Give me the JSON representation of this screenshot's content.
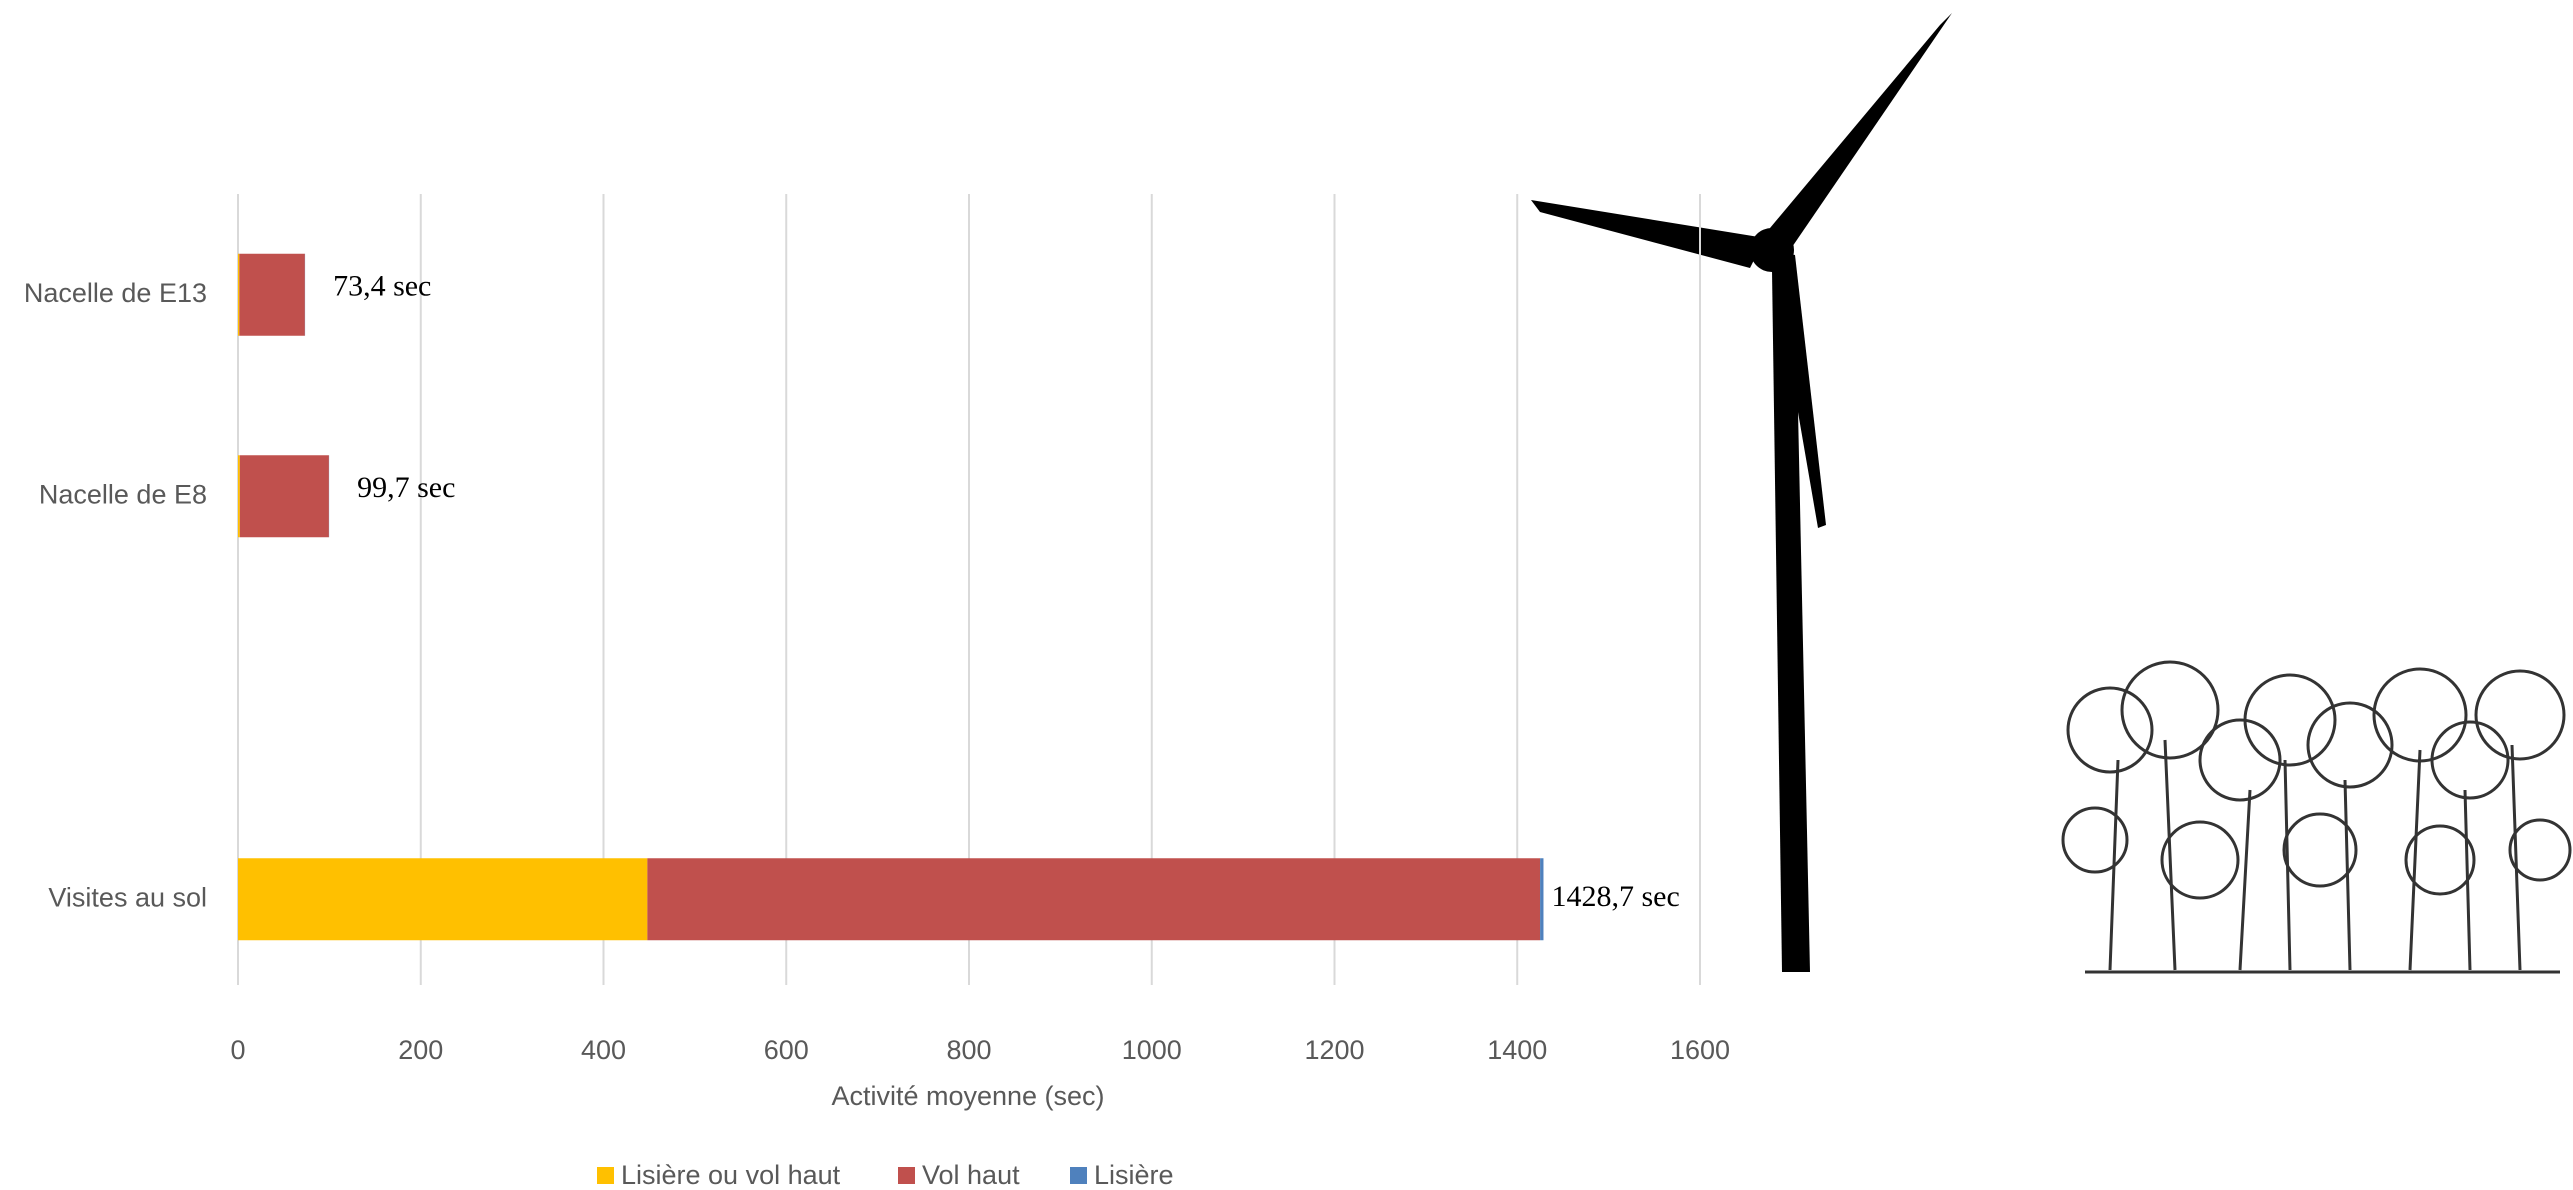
{
  "chart_data": {
    "type": "bar",
    "orientation": "horizontal",
    "stacked": true,
    "categories": [
      "Nacelle de E13",
      "Nacelle de E8",
      null,
      "Visites au sol"
    ],
    "series": [
      {
        "name": "Lisière ou vol haut",
        "color": "#FFC000",
        "values": [
          1.5,
          2,
          null,
          448
        ]
      },
      {
        "name": "Vol haut",
        "color": "#C0504D",
        "values": [
          71.7,
          97.5,
          null,
          977
        ]
      },
      {
        "name": "Lisière",
        "color": "#4F81BD",
        "values": [
          0.2,
          0.2,
          null,
          3.7
        ]
      }
    ],
    "totals": [
      73.4,
      99.7,
      null,
      1428.7
    ],
    "total_labels": [
      "73,4 sec",
      "99,7 sec",
      null,
      "1428,7 sec"
    ],
    "xlabel": "Activité moyenne (sec)",
    "xlim": [
      0,
      1600
    ],
    "xticks": [
      0,
      200,
      400,
      600,
      800,
      1000,
      1200,
      1400,
      1600
    ],
    "grid": true,
    "legend": "bottom"
  }
}
